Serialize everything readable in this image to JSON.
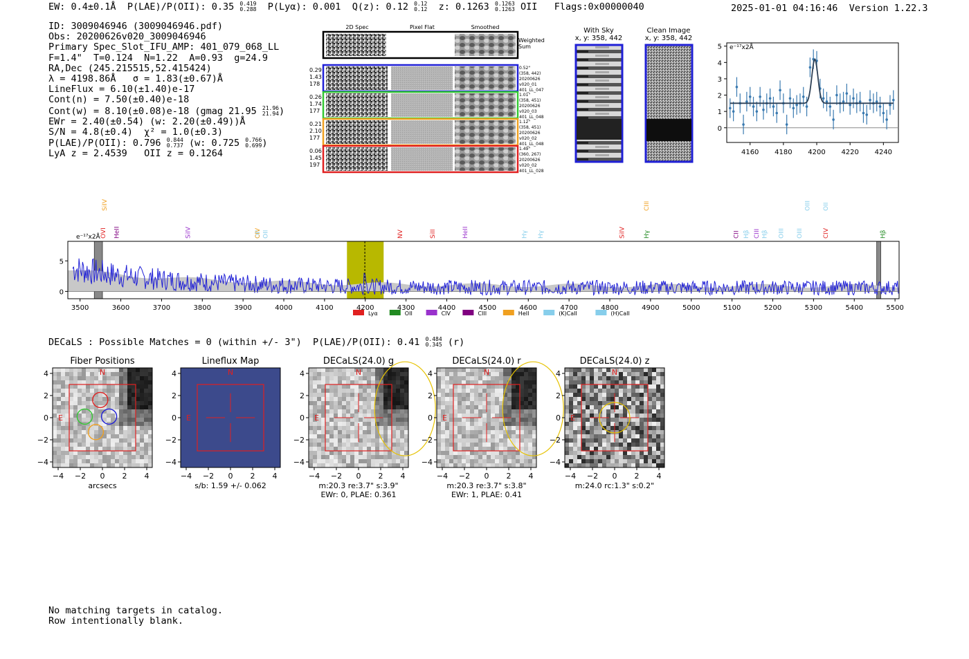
{
  "header": {
    "ew": "EW: 0.4±0.1Å",
    "plae_label": "P(LAE)/P(OII): 0.35",
    "plae_hi": "0.419",
    "plae_lo": "0.288",
    "plya": "P(Lyα): 0.001",
    "qz_label": "Q(z): 0.12",
    "qz_hi": "0.12",
    "qz_lo": "0.12",
    "z_label": "z: 0.1263",
    "z_hi": "0.1263",
    "z_lo": "0.1263",
    "z_line": "OII",
    "flags": "Flags:0x00000040",
    "timestamp": "2025-01-01 04:16:46",
    "version": "Version 1.22.3"
  },
  "info": {
    "id": "ID: 3009046946 (3009046946.pdf)",
    "obs": "Obs: 20200626v020_3009046946",
    "primary": "Primary Spec_Slot_IFU_AMP: 401_079_068_LL",
    "fwhm_line": "F=1.4\"  T=0.124  N=1.22  A=0.93  g=24.9",
    "radec": "RA,Dec (245.215515,52.415424)",
    "lambda": "λ = 4198.86Å   σ = 1.83(±0.67)Å",
    "lineflux": "LineFlux = 6.10(±1.40)e-17",
    "contn": "Cont(n) = 7.50(±0.40)e-18",
    "contw": "Cont(w) = 8.10(±0.08)e-18 (gmag 21.95",
    "gmag_hi": "21.96",
    "gmag_lo": "21.94",
    "contw_close": ")",
    "ewr": "EWr = 2.40(±0.54) (w: 2.20(±0.49))Å",
    "sn": "S/N = 4.8(±0.4)  χ² = 1.0(±0.3)",
    "plae_a": "P(LAE)/P(OII): 0.796",
    "plae_a_hi": "0.844",
    "plae_a_lo": "0.737",
    "plae_w": "(w: 0.725",
    "plae_w_hi": "0.766",
    "plae_w_lo": "0.699",
    "plae_close": ")",
    "lyaz": "LyA z = 2.4539   OII z = 0.1264"
  },
  "cutouts": {
    "col_labels": [
      "2D Spec",
      "Pixel Flat",
      "Smoothed"
    ],
    "weighted_label_1": "Weighted",
    "weighted_label_2": "Sum",
    "rows": [
      {
        "left": [
          "0.29",
          "1.43",
          "178"
        ],
        "right": [
          "0.52\"",
          "(358, 442)",
          "20200626",
          "v020_01",
          "401_LL_047"
        ],
        "color": "#1f1fd6"
      },
      {
        "left": [
          "0.26",
          "1.74",
          "177"
        ],
        "right": [
          "1.01\"",
          "(358, 451)",
          "20200626",
          "v020_03",
          "401_LL_048"
        ],
        "color": "#32c832"
      },
      {
        "left": [
          "0.21",
          "2.10",
          "177"
        ],
        "right": [
          "1.12\"",
          "(358, 451)",
          "20200626",
          "v020_02",
          "401_LL_048"
        ],
        "color": "#f0a020"
      },
      {
        "left": [
          "0.06",
          "1.45",
          "197"
        ],
        "right": [
          "1.49\"",
          "(360, 267)",
          "20200626",
          "v020_02",
          "401_LL_028"
        ],
        "color": "#e02020"
      }
    ],
    "with_sky_title": "With Sky",
    "with_sky_xy": "x, y: 358, 442",
    "clean_title": "Clean Image",
    "clean_xy": "x, y: 358, 442"
  },
  "colors": {
    "spectrum": "#1f1fd6",
    "zoom_line": "#3a7ab0",
    "highlight": "#b8b800",
    "box": "#e02020"
  },
  "chart_data": [
    {
      "type": "line",
      "name": "zoom-spectrum",
      "ylabel": "e⁻¹⁷x2Å",
      "xlim": [
        4146,
        4249
      ],
      "ylim": [
        -0.9,
        5.2
      ],
      "xticks": [
        4160,
        4180,
        4200,
        4220,
        4240
      ],
      "yticks": [
        0,
        1,
        2,
        3,
        4,
        5
      ],
      "x": [
        4148,
        4150,
        4152,
        4154,
        4156,
        4158,
        4160,
        4162,
        4164,
        4166,
        4168,
        4170,
        4172,
        4174,
        4176,
        4178,
        4180,
        4182,
        4184,
        4186,
        4188,
        4190,
        4192,
        4194,
        4196,
        4198,
        4200,
        4202,
        4204,
        4206,
        4208,
        4210,
        4212,
        4214,
        4216,
        4218,
        4220,
        4222,
        4224,
        4226,
        4228,
        4230,
        4232,
        4234,
        4236,
        4238,
        4240,
        4242,
        4244,
        4246
      ],
      "y": [
        1.2,
        1.0,
        2.5,
        1.5,
        0.2,
        1.6,
        1.9,
        1.3,
        1.0,
        1.9,
        1.1,
        1.5,
        1.8,
        1.3,
        0.9,
        2.3,
        1.5,
        0.2,
        1.8,
        1.2,
        1.4,
        1.5,
        1.9,
        1.3,
        3.7,
        4.2,
        4.1,
        2.4,
        1.8,
        1.6,
        1.3,
        0.5,
        2.0,
        1.5,
        1.6,
        2.1,
        1.4,
        1.8,
        1.5,
        1.6,
        0.9,
        0.8,
        1.7,
        1.5,
        1.6,
        1.3,
        0.9,
        0.5,
        1.4,
        1.7
      ],
      "yerr": 0.6,
      "fit": {
        "continuum": 1.5,
        "peak": 4.2,
        "center": 4198.86,
        "sigma": 1.83
      }
    },
    {
      "type": "line",
      "name": "full-spectrum",
      "ylabel": "e⁻¹⁷x2Å",
      "xlim": [
        3470,
        5510
      ],
      "ylim": [
        -1.2,
        8.2
      ],
      "xticks": [
        3500,
        3600,
        3700,
        3800,
        3900,
        4000,
        4100,
        4200,
        4300,
        4400,
        4500,
        4600,
        4700,
        4800,
        4900,
        5000,
        5100,
        5200,
        5300,
        5400,
        5500
      ],
      "yticks": [
        0,
        5
      ],
      "highlight_range": [
        4155,
        4245
      ],
      "detection_line": 4198.86,
      "masked_ranges": [
        [
          3535,
          3555
        ],
        [
          5455,
          5465
        ]
      ],
      "line_labels": [
        {
          "label": "SiIV",
          "x": 3560,
          "color": "#f0a020",
          "row": 0
        },
        {
          "label": "OVI",
          "x": 3557,
          "color": "#e02020",
          "row": 1
        },
        {
          "label": "HeII",
          "x": 3590,
          "color": "#800080",
          "row": 1
        },
        {
          "label": "SiIV",
          "x": 3765,
          "color": "#9932cc",
          "row": 1
        },
        {
          "label": "OII",
          "x": 3935,
          "color": "#87ceeb",
          "row": 1
        },
        {
          "label": "CIV",
          "x": 3935,
          "color": "#f0a020",
          "row": 1
        },
        {
          "label": "OII",
          "x": 3955,
          "color": "#87ceeb",
          "row": 1
        },
        {
          "label": "NV",
          "x": 4285,
          "color": "#e02020",
          "row": 1
        },
        {
          "label": "SiII",
          "x": 4365,
          "color": "#e02020",
          "row": 1
        },
        {
          "label": "HeII",
          "x": 4445,
          "color": "#9932cc",
          "row": 1
        },
        {
          "label": "Hγ",
          "x": 4590,
          "color": "#87ceeb",
          "row": 1
        },
        {
          "label": "Hγ",
          "x": 4630,
          "color": "#87ceeb",
          "row": 1
        },
        {
          "label": "SiIV",
          "x": 4830,
          "color": "#e02020",
          "row": 1
        },
        {
          "label": "CIII",
          "x": 4890,
          "color": "#f0a020",
          "row": 0
        },
        {
          "label": "Hγ",
          "x": 4890,
          "color": "#228b22",
          "row": 1
        },
        {
          "label": "CII",
          "x": 5110,
          "color": "#800080",
          "row": 1
        },
        {
          "label": "Hβ",
          "x": 5135,
          "color": "#87ceeb",
          "row": 1
        },
        {
          "label": "CIII",
          "x": 5160,
          "color": "#9932cc",
          "row": 1
        },
        {
          "label": "Hβ",
          "x": 5180,
          "color": "#87ceeb",
          "row": 1
        },
        {
          "label": "OIII",
          "x": 5220,
          "color": "#87ceeb",
          "row": 1
        },
        {
          "label": "OIII",
          "x": 5265,
          "color": "#87ceeb",
          "row": 1
        },
        {
          "label": "OIII",
          "x": 5285,
          "color": "#87ceeb",
          "row": 0
        },
        {
          "label": "OII",
          "x": 5330,
          "color": "#87ceeb",
          "row": 0
        },
        {
          "label": "CIV",
          "x": 5330,
          "color": "#e02020",
          "row": 1
        },
        {
          "label": "Hβ",
          "x": 5470,
          "color": "#228b22",
          "row": 1
        }
      ],
      "legend": [
        {
          "label": "Lyα",
          "color": "#e02020"
        },
        {
          "label": "OII",
          "color": "#228b22"
        },
        {
          "label": "CIV",
          "color": "#9932cc"
        },
        {
          "label": "CIII",
          "color": "#800080"
        },
        {
          "label": "HeII",
          "color": "#f0a020"
        },
        {
          "label": "(K)CaII",
          "color": "#87ceeb"
        },
        {
          "label": "(H)CaII",
          "color": "#87ceeb"
        }
      ]
    }
  ],
  "decals": {
    "matches_line": "DECaLS : Possible Matches = 0 (within +/- 3\")  P(LAE)/P(OII): 0.41",
    "match_hi": "0.484",
    "match_lo": "0.345",
    "match_band": "(r)",
    "ticks": [
      "4",
      "2",
      "0",
      "−2",
      "−4"
    ],
    "xticks": [
      "−4",
      "−2",
      "0",
      "2",
      "4"
    ],
    "north": "N",
    "east": "E",
    "panels": [
      {
        "title": "Fiber Positions",
        "caption1": "arcsecs",
        "caption2": ""
      },
      {
        "title": "Lineflux Map",
        "caption1": "s/b: 1.59 +/- 0.062",
        "caption2": ""
      },
      {
        "title": "DECaLS(24.0) g",
        "caption1": "m:20.3  re:3.7\"  s:3.9\"",
        "caption2": "EWr: 0, PLAE: 0.361"
      },
      {
        "title": "DECaLS(24.0) r",
        "caption1": "m:20.3  re:3.7\"  s:3.8\"",
        "caption2": "EWr: 1, PLAE: 0.41"
      },
      {
        "title": "DECaLS(24.0) z",
        "caption1": "m:24.0 rc:1.3\"  s:0.2\"",
        "caption2": ""
      }
    ]
  },
  "catalog": {
    "line1": "No matching targets in catalog.",
    "line2": "Row intentionally blank."
  }
}
